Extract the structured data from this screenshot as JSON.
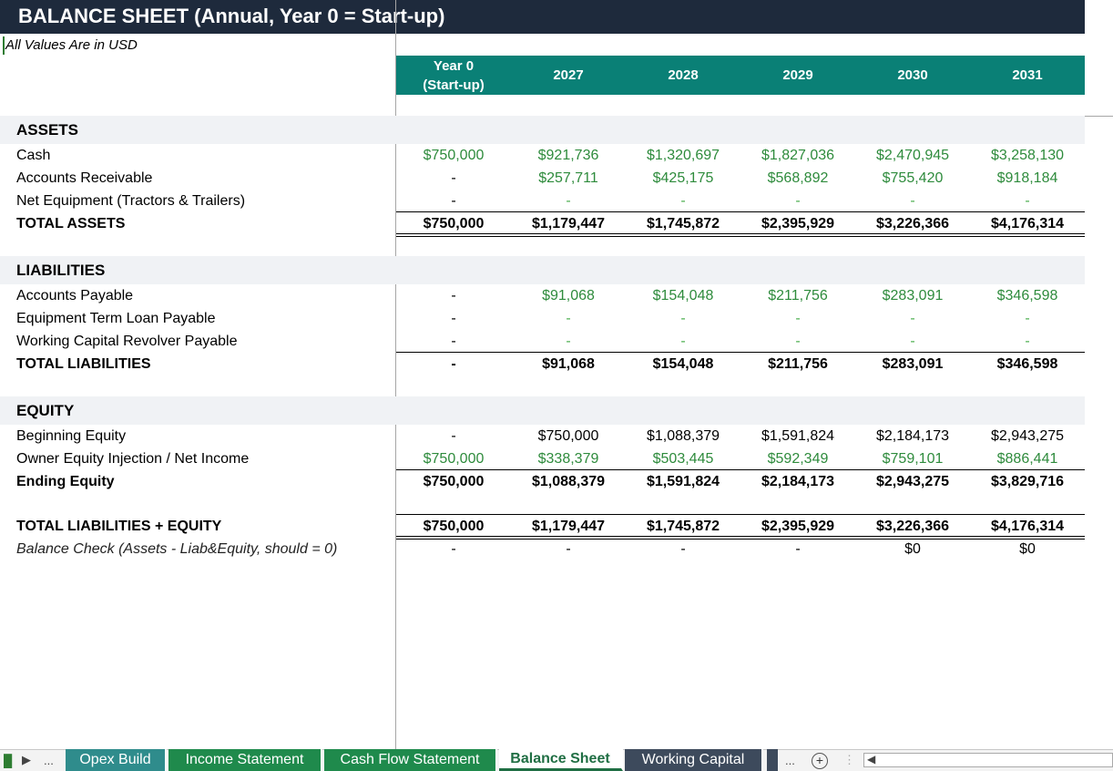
{
  "title": "BALANCE SHEET  (Annual, Year 0 = Start-up)",
  "subtitle": "All Values Are in USD",
  "columns": [
    "Year 0\n(Start-up)",
    "2027",
    "2028",
    "2029",
    "2030",
    "2031"
  ],
  "sections": {
    "assets": "ASSETS",
    "liabilities": "LIABILITIES",
    "equity": "EQUITY"
  },
  "rows": {
    "cash": {
      "label": "Cash",
      "values": [
        "$750,000",
        "$921,736",
        "$1,320,697",
        "$1,827,036",
        "$2,470,945",
        "$3,258,130"
      ]
    },
    "ar": {
      "label": "Accounts Receivable",
      "values": [
        "-",
        "$257,711",
        "$425,175",
        "$568,892",
        "$755,420",
        "$918,184"
      ]
    },
    "equip": {
      "label": "Net Equipment (Tractors & Trailers)",
      "values": [
        "-",
        "-",
        "-",
        "-",
        "-",
        "-"
      ]
    },
    "total_assets": {
      "label": "TOTAL ASSETS",
      "values": [
        "$750,000",
        "$1,179,447",
        "$1,745,872",
        "$2,395,929",
        "$3,226,366",
        "$4,176,314"
      ]
    },
    "ap": {
      "label": "Accounts Payable",
      "values": [
        "-",
        "$91,068",
        "$154,048",
        "$211,756",
        "$283,091",
        "$346,598"
      ]
    },
    "term_loan": {
      "label": "Equipment Term Loan Payable",
      "values": [
        "-",
        "-",
        "-",
        "-",
        "-",
        "-"
      ]
    },
    "revolver": {
      "label": "Working Capital Revolver Payable",
      "values": [
        "-",
        "-",
        "-",
        "-",
        "-",
        "-"
      ]
    },
    "total_liab": {
      "label": "TOTAL LIABILITIES",
      "values": [
        "-",
        "$91,068",
        "$154,048",
        "$211,756",
        "$283,091",
        "$346,598"
      ]
    },
    "beg_equity": {
      "label": "Beginning Equity",
      "values": [
        "-",
        "$750,000",
        "$1,088,379",
        "$1,591,824",
        "$2,184,173",
        "$2,943,275"
      ]
    },
    "net_income": {
      "label": "Owner Equity Injection / Net Income",
      "values": [
        "$750,000",
        "$338,379",
        "$503,445",
        "$592,349",
        "$759,101",
        "$886,441"
      ]
    },
    "end_equity": {
      "label": "Ending Equity",
      "values": [
        "$750,000",
        "$1,088,379",
        "$1,591,824",
        "$2,184,173",
        "$2,943,275",
        "$3,829,716"
      ]
    },
    "total_le": {
      "label": "TOTAL LIABILITIES + EQUITY",
      "values": [
        "$750,000",
        "$1,179,447",
        "$1,745,872",
        "$2,395,929",
        "$3,226,366",
        "$4,176,314"
      ]
    },
    "check": {
      "label": "Balance Check (Assets - Liab&Equity, should = 0)",
      "values": [
        "-",
        "-",
        "-",
        "-",
        "$0",
        "$0"
      ]
    }
  },
  "sheet_tabs": [
    {
      "label": "Opex Build",
      "color": "#2f8c8c"
    },
    {
      "label": "Income Statement",
      "color": "#1f8a4c"
    },
    {
      "label": "Cash Flow Statement",
      "color": "#1f8a4c"
    },
    {
      "label": "Balance Sheet",
      "color": "#ffffff"
    },
    {
      "label": "Working Capital",
      "color": "#3d4a5c"
    }
  ],
  "nav": {
    "ellipsis": "...",
    "more": "...",
    "add": "+"
  },
  "colors": {
    "title_bg": "#1e2a3c",
    "header_bg": "#0a8076",
    "positive": "#2e8b3c",
    "section_bg": "#f0f2f5"
  }
}
